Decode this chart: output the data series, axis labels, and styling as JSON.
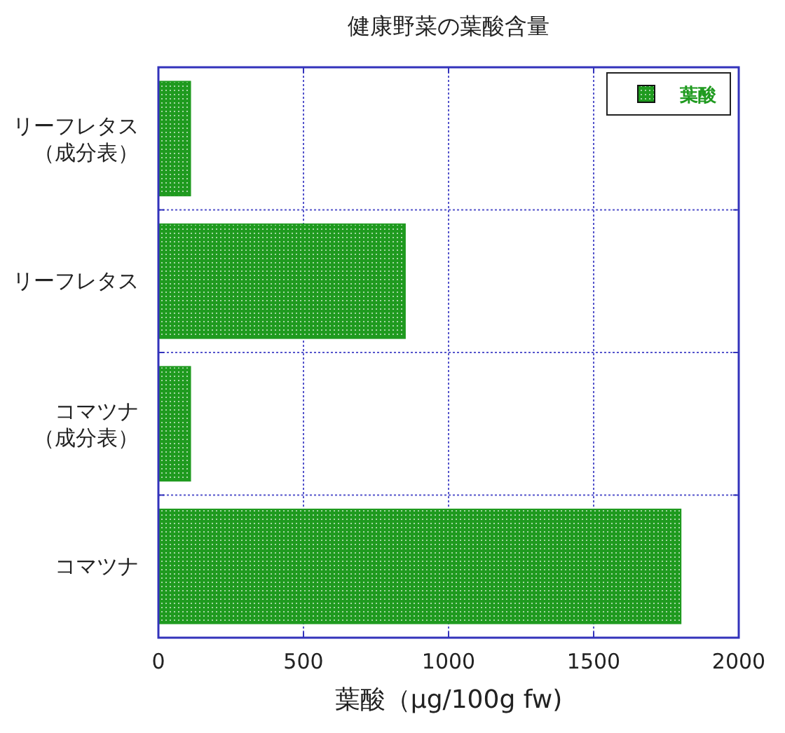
{
  "chart_data": {
    "type": "bar",
    "orientation": "horizontal",
    "title": "健康野菜の葉酸含量",
    "xlabel": "葉酸（μg/100g fw)",
    "categories": [
      "リーフレタス（成分表）",
      "リーフレタス",
      "コマツナ（成分表）",
      "コマツナ"
    ],
    "series": [
      {
        "name": "葉酸",
        "color": "#1f9a1f",
        "values": [
          110,
          850,
          110,
          1800
        ]
      }
    ],
    "xlim": [
      0,
      2000
    ],
    "xticks": [
      0,
      500,
      1000,
      1500,
      2000
    ],
    "grid": true,
    "legend": "top right"
  }
}
